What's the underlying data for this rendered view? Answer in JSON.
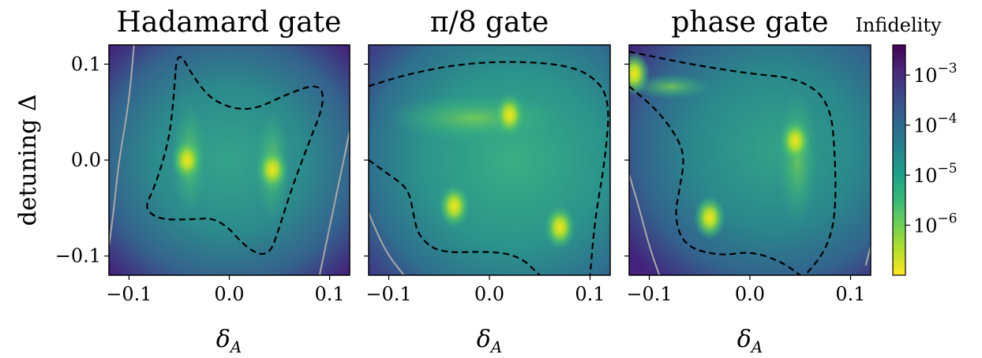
{
  "chart_data": [
    {
      "type": "heatmap",
      "title": "Hadamard gate",
      "xlabel": "δ_A",
      "ylabel": "detuning Δ",
      "xlim": [
        -0.12,
        0.12
      ],
      "ylim": [
        -0.12,
        0.12
      ],
      "xticks": [
        "−0.1",
        "0.0",
        "0.1"
      ],
      "yticks": [
        "0.1",
        "0.0",
        "−0.1"
      ],
      "minima": [
        [
          -0.042,
          0.0
        ],
        [
          0.043,
          -0.01
        ]
      ],
      "dashed_contour": [
        [
          -0.052,
          0.117
        ],
        [
          -0.035,
          0.085
        ],
        [
          -0.015,
          0.06
        ],
        [
          0.02,
          0.05
        ],
        [
          0.06,
          0.07
        ],
        [
          0.09,
          0.08
        ],
        [
          0.095,
          0.06
        ],
        [
          0.08,
          0.02
        ],
        [
          0.062,
          -0.03
        ],
        [
          0.05,
          -0.07
        ],
        [
          0.04,
          -0.1
        ],
        [
          0.02,
          -0.095
        ],
        [
          -0.01,
          -0.06
        ],
        [
          -0.04,
          -0.062
        ],
        [
          -0.07,
          -0.062
        ],
        [
          -0.085,
          -0.05
        ],
        [
          -0.075,
          -0.03
        ],
        [
          -0.06,
          0.02
        ],
        [
          -0.055,
          0.07
        ]
      ],
      "solid_contours": [
        [
          [
            -0.095,
            0.12
          ],
          [
            -0.1,
            0.06
          ],
          [
            -0.11,
            0.0
          ],
          [
            -0.115,
            -0.05
          ],
          [
            -0.12,
            -0.09
          ]
        ],
        [
          [
            0.12,
            0.03
          ],
          [
            0.11,
            -0.02
          ],
          [
            0.1,
            -0.07
          ],
          [
            0.09,
            -0.12
          ]
        ]
      ]
    },
    {
      "type": "heatmap",
      "title": "π/8 gate",
      "xlabel": "δ_A",
      "xlim": [
        -0.12,
        0.12
      ],
      "ylim": [
        -0.12,
        0.12
      ],
      "xticks": [
        "−0.1",
        "0.0",
        "0.1"
      ],
      "minima": [
        [
          0.02,
          0.047
        ],
        [
          -0.035,
          -0.048
        ],
        [
          0.07,
          -0.07
        ]
      ],
      "dashed_contour": [
        [
          -0.12,
          0.077
        ],
        [
          -0.08,
          0.09
        ],
        [
          -0.03,
          0.1
        ],
        [
          0.02,
          0.103
        ],
        [
          0.07,
          0.1
        ],
        [
          0.1,
          0.09
        ],
        [
          0.12,
          0.065
        ],
        [
          0.115,
          0.0
        ],
        [
          0.105,
          -0.06
        ],
        [
          0.1,
          -0.12
        ]
      ],
      "dashed_contour_2": [
        [
          -0.12,
          0.0
        ],
        [
          -0.1,
          -0.015
        ],
        [
          -0.08,
          -0.03
        ],
        [
          -0.075,
          -0.06
        ],
        [
          -0.07,
          -0.08
        ],
        [
          -0.05,
          -0.097
        ],
        [
          0.0,
          -0.095
        ],
        [
          0.03,
          -0.1
        ],
        [
          0.05,
          -0.12
        ]
      ],
      "solid_contours": [
        [
          [
            -0.12,
            -0.055
          ],
          [
            -0.11,
            -0.08
          ],
          [
            -0.1,
            -0.1
          ],
          [
            -0.085,
            -0.12
          ]
        ]
      ]
    },
    {
      "type": "heatmap",
      "title": "phase gate",
      "xlabel": "δ_A",
      "xlim": [
        -0.12,
        0.12
      ],
      "ylim": [
        -0.12,
        0.12
      ],
      "xticks": [
        "−0.1",
        "0.0",
        "0.1"
      ],
      "minima": [
        [
          -0.115,
          0.09
        ],
        [
          0.045,
          0.02
        ],
        [
          -0.04,
          -0.06
        ]
      ],
      "dashed_contour": [
        [
          -0.12,
          0.113
        ],
        [
          -0.06,
          0.1
        ],
        [
          0.0,
          0.09
        ],
        [
          0.05,
          0.085
        ],
        [
          0.08,
          0.06
        ],
        [
          0.085,
          0.0
        ],
        [
          0.085,
          -0.06
        ],
        [
          0.075,
          -0.095
        ],
        [
          0.055,
          -0.12
        ]
      ],
      "dashed_contour_2": [
        [
          -0.12,
          0.077
        ],
        [
          -0.09,
          0.05
        ],
        [
          -0.07,
          0.02
        ],
        [
          -0.065,
          0.0
        ],
        [
          -0.07,
          -0.03
        ],
        [
          -0.075,
          -0.06
        ],
        [
          -0.065,
          -0.09
        ],
        [
          -0.03,
          -0.1
        ],
        [
          0.0,
          -0.095
        ],
        [
          0.03,
          -0.105
        ],
        [
          0.05,
          -0.12
        ]
      ],
      "solid_contours": [
        [
          [
            -0.12,
            -0.015
          ],
          [
            -0.11,
            -0.05
          ],
          [
            -0.1,
            -0.09
          ],
          [
            -0.09,
            -0.12
          ]
        ],
        [
          [
            0.12,
            -0.09
          ],
          [
            0.115,
            -0.11
          ]
        ]
      ]
    }
  ],
  "colorbar": {
    "label": "Infidelity",
    "scale": "log",
    "range": [
      1e-07,
      0.004
    ],
    "ticks": [
      {
        "value": 0.001,
        "base": "10",
        "exp": "−3"
      },
      {
        "value": 0.0001,
        "base": "10",
        "exp": "−4"
      },
      {
        "value": 1e-05,
        "base": "10",
        "exp": "−5"
      },
      {
        "value": 1e-06,
        "base": "10",
        "exp": "−6"
      }
    ],
    "colormap": [
      "#fde725",
      "#b5de2b",
      "#6ece58",
      "#35b779",
      "#1f9e89",
      "#26828e",
      "#31688e",
      "#3e4989",
      "#482878",
      "#440154"
    ]
  }
}
